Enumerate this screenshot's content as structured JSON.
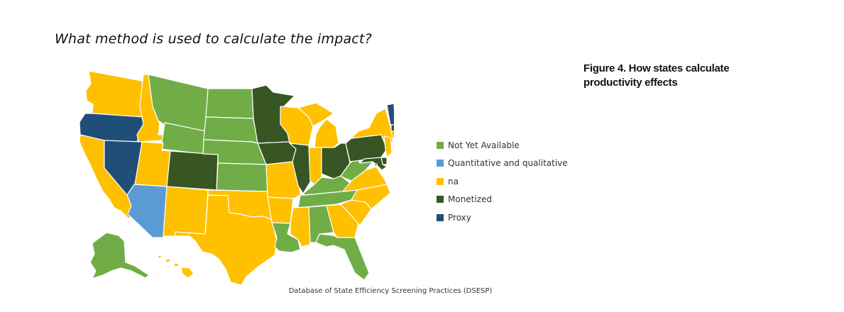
{
  "title": "What method is used to calculate the impact?",
  "caption": "Figure 4. How states calculate productivity effects",
  "source": "Database of State Efficiency Screening Practices (DSESP)",
  "colors": {
    "not_yet_available": "#70ad47",
    "quantitative_and_qualitative": "#5b9bd5",
    "na": "#ffc000",
    "monetized": "#375623",
    "proxy": "#1f4e79"
  },
  "legend": [
    {
      "label": "Not Yet Available",
      "category": "not_yet_available"
    },
    {
      "label": "Quantitative and qualitative",
      "category": "quantitative_and_qualitative"
    },
    {
      "label": "na",
      "category": "na"
    },
    {
      "label": "Monetized",
      "category": "monetized"
    },
    {
      "label": "Proxy",
      "category": "proxy"
    }
  ],
  "states": {
    "WA": "na",
    "OR": "proxy",
    "CA": "na",
    "NV": "proxy",
    "ID": "na",
    "MT": "not_yet_available",
    "WY": "not_yet_available",
    "UT": "na",
    "AZ": "quantitative_and_qualitative",
    "CO": "monetized",
    "NM": "na",
    "ND": "not_yet_available",
    "SD": "not_yet_available",
    "NE": "not_yet_available",
    "KS": "not_yet_available",
    "OK": "na",
    "TX": "na",
    "MN": "monetized",
    "IA": "monetized",
    "MO": "na",
    "AR": "na",
    "LA": "not_yet_available",
    "WI": "na",
    "IL": "monetized",
    "MI": "na",
    "IN": "na",
    "OH": "monetized",
    "KY": "not_yet_available",
    "TN": "not_yet_available",
    "MS": "na",
    "AL": "not_yet_available",
    "GA": "na",
    "FL": "not_yet_available",
    "SC": "na",
    "NC": "na",
    "VA": "na",
    "WV": "not_yet_available",
    "PA": "monetized",
    "NY": "na",
    "VT": "proxy",
    "NH": "proxy",
    "ME": "na",
    "MA": "monetized",
    "RI": "monetized",
    "CT": "na",
    "NJ": "na",
    "DE": "monetized",
    "MD": "monetized",
    "DC": "monetized",
    "AK": "not_yet_available",
    "HI": "na"
  }
}
